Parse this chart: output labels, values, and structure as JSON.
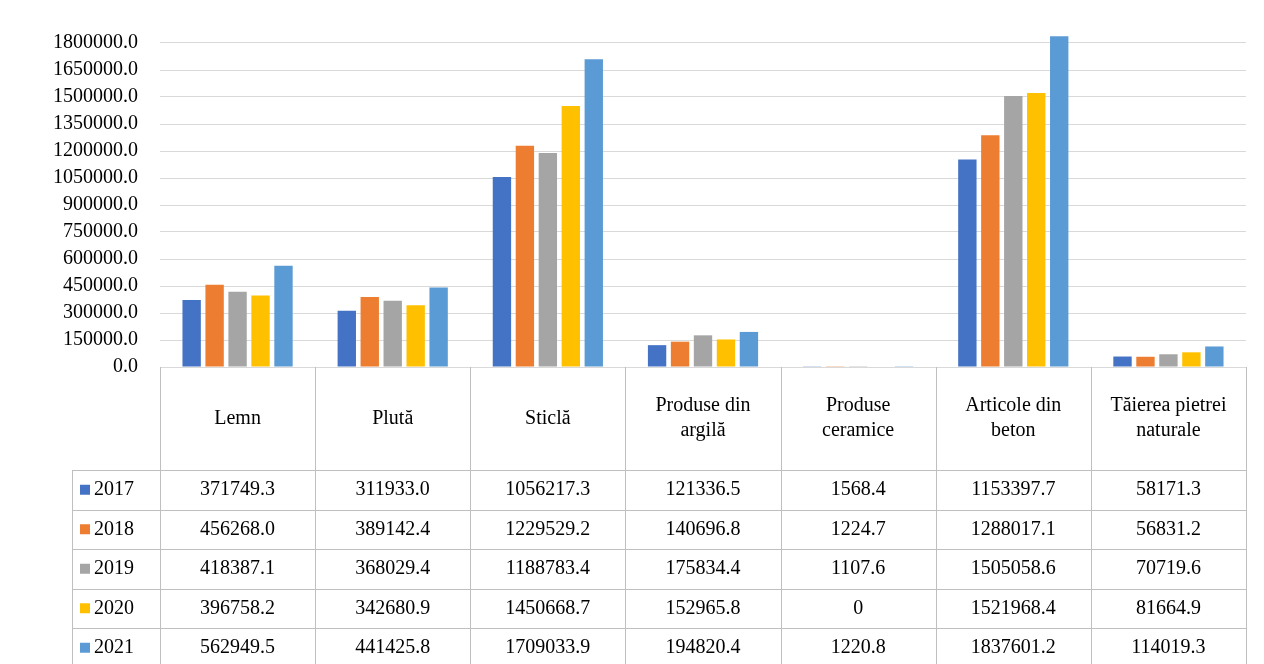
{
  "chart_data": {
    "type": "bar",
    "categories": [
      "Lemn",
      "Plută",
      "Sticlă",
      "Produse din argilă",
      "Produse ceramice",
      "Articole din beton",
      "Tăierea pietrei naturale"
    ],
    "series": [
      {
        "name": "2017",
        "color": "#4472c4",
        "values": [
          371749.3,
          311933.0,
          1056217.3,
          121336.5,
          1568.4,
          1153397.7,
          58171.3
        ],
        "value_labels": [
          "371749.3",
          "311933.0",
          "1056217.3",
          "121336.5",
          "1568.4",
          "1153397.7",
          "58171.3"
        ]
      },
      {
        "name": "2018",
        "color": "#ed7d31",
        "values": [
          456268.0,
          389142.4,
          1229529.2,
          140696.8,
          1224.7,
          1288017.1,
          56831.2
        ],
        "value_labels": [
          "456268.0",
          "389142.4",
          "1229529.2",
          "140696.8",
          "1224.7",
          "1288017.1",
          "56831.2"
        ]
      },
      {
        "name": "2019",
        "color": "#a5a5a5",
        "values": [
          418387.1,
          368029.4,
          1188783.4,
          175834.4,
          1107.6,
          1505058.6,
          70719.6
        ],
        "value_labels": [
          "418387.1",
          "368029.4",
          "1188783.4",
          "175834.4",
          "1107.6",
          "1505058.6",
          "70719.6"
        ]
      },
      {
        "name": "2020",
        "color": "#ffc000",
        "values": [
          396758.2,
          342680.9,
          1450668.7,
          152965.8,
          0,
          1521968.4,
          81664.9
        ],
        "value_labels": [
          "396758.2",
          "342680.9",
          "1450668.7",
          "152965.8",
          "0",
          "1521968.4",
          "81664.9"
        ]
      },
      {
        "name": "2021",
        "color": "#5b9bd5",
        "values": [
          562949.5,
          441425.8,
          1709033.9,
          194820.4,
          1220.8,
          1837601.2,
          114019.3
        ],
        "value_labels": [
          "562949.5",
          "441425.8",
          "1709033.9",
          "194820.4",
          "1220.8",
          "1837601.2",
          "114019.3"
        ]
      }
    ],
    "ylim": [
      0,
      1850000
    ],
    "yticks": [
      {
        "value": 0,
        "label": "0.0"
      },
      {
        "value": 150000,
        "label": "150000.0"
      },
      {
        "value": 300000,
        "label": "300000.0"
      },
      {
        "value": 450000,
        "label": "450000.0"
      },
      {
        "value": 600000,
        "label": "600000.0"
      },
      {
        "value": 750000,
        "label": "750000.0"
      },
      {
        "value": 900000,
        "label": "900000.0"
      },
      {
        "value": 1050000,
        "label": "1050000.0"
      },
      {
        "value": 1200000,
        "label": "1200000.0"
      },
      {
        "value": 1350000,
        "label": "1350000.0"
      },
      {
        "value": 1500000,
        "label": "1500000.0"
      },
      {
        "value": 1650000,
        "label": "1650000.0"
      },
      {
        "value": 1800000,
        "label": "1800000.0"
      }
    ],
    "grid": "y",
    "legend": "bottom"
  }
}
